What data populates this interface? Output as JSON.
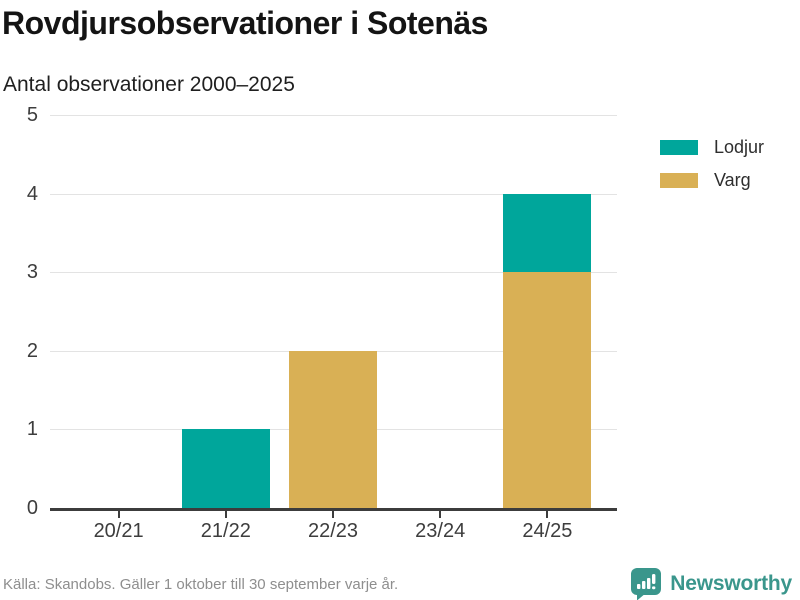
{
  "header": {
    "title": "Rovdjursobservationer i Sotenäs",
    "subtitle": "Antal observationer 2000–2025"
  },
  "chart_data": {
    "type": "bar",
    "stacked": true,
    "title": "Rovdjursobservationer i Sotenäs",
    "subtitle": "Antal observationer 2000–2025",
    "categories": [
      "20/21",
      "21/22",
      "22/23",
      "23/24",
      "24/25"
    ],
    "series": [
      {
        "name": "Lodjur",
        "color": "#00a69b",
        "values": [
          0,
          1,
          0,
          0,
          1
        ]
      },
      {
        "name": "Varg",
        "color": "#d9b055",
        "values": [
          0,
          0,
          2,
          0,
          3
        ]
      }
    ],
    "stack_order_top_to_bottom": [
      "Lodjur",
      "Varg"
    ],
    "totals": [
      0,
      1,
      2,
      0,
      4
    ],
    "xlabel": "",
    "ylabel": "",
    "ylim": [
      0,
      5
    ],
    "yticks": [
      0,
      1,
      2,
      3,
      4,
      5
    ],
    "grid": true,
    "legend_position": "right"
  },
  "legend": {
    "items": [
      {
        "label": "Lodjur",
        "color": "#00a69b"
      },
      {
        "label": "Varg",
        "color": "#d9b055"
      }
    ]
  },
  "footer": {
    "source": "Källa: Skandobs. Gäller 1 oktober till 30 september varje år.",
    "brand": "Newsworthy"
  },
  "colors": {
    "lodjur": "#00a69b",
    "varg": "#d9b055",
    "brand_teal": "#3a968c",
    "gridline": "#e3e3e3",
    "axis": "#3c3c3c"
  }
}
